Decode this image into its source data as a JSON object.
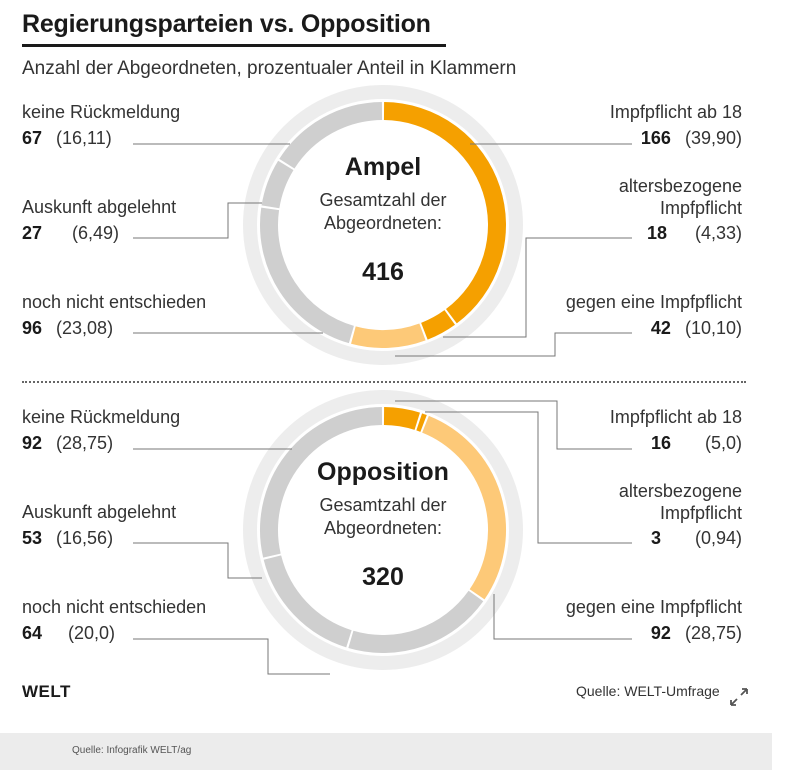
{
  "header": {
    "title": "Regierungsparteien vs. Opposition",
    "subtitle": "Anzahl der Abgeordneten, prozentualer Anteil in Klammern"
  },
  "colors": {
    "impfpflicht_ab_18": "#f5a000",
    "altersbezogen": "#f5a000",
    "gegen": "#fdc978",
    "undecided": "#cfcfcf",
    "outer_ring": "#ededed"
  },
  "chart_data": [
    {
      "type": "pie",
      "title": "Ampel",
      "center_label": "Gesamtzahl der Abgeordneten:",
      "total": "416",
      "slices": [
        {
          "label": "Impfpflicht ab 18",
          "value": 166,
          "pct": "39,90",
          "color": "#f5a000"
        },
        {
          "label": "altersbezogene Impfpflicht",
          "value": 18,
          "pct": "4,33",
          "color": "#f5a000"
        },
        {
          "label": "gegen eine Impfpflicht",
          "value": 42,
          "pct": "10,10",
          "color": "#fdc978"
        },
        {
          "label": "noch nicht entschieden",
          "value": 96,
          "pct": "23,08",
          "color": "#cfcfcf"
        },
        {
          "label": "Auskunft abgelehnt",
          "value": 27,
          "pct": "6,49",
          "color": "#cfcfcf"
        },
        {
          "label": "keine Rückmeldung",
          "value": 67,
          "pct": "16,11",
          "color": "#cfcfcf"
        }
      ]
    },
    {
      "type": "pie",
      "title": "Opposition",
      "center_label": "Gesamtzahl der Abgeordneten:",
      "total": "320",
      "slices": [
        {
          "label": "Impfpflicht ab 18",
          "value": 16,
          "pct": "5,0",
          "color": "#f5a000"
        },
        {
          "label": "altersbezogene Impfpflicht",
          "value": 3,
          "pct": "0,94",
          "color": "#f5a000"
        },
        {
          "label": "gegen eine Impfpflicht",
          "value": 92,
          "pct": "28,75",
          "color": "#fdc978"
        },
        {
          "label": "noch nicht entschieden",
          "value": 64,
          "pct": "20,0",
          "color": "#cfcfcf"
        },
        {
          "label": "Auskunft abgelehnt",
          "value": 53,
          "pct": "16,56",
          "color": "#cfcfcf"
        },
        {
          "label": "keine Rückmeldung",
          "value": 92,
          "pct": "28,75",
          "color": "#cfcfcf"
        }
      ]
    }
  ],
  "labels": {
    "top": {
      "keine_rueck": {
        "line1": "keine Rückmeldung",
        "num": "67",
        "pct": "(16,11)"
      },
      "auskunft": {
        "line1": "Auskunft abgelehnt",
        "num": "27",
        "pct": "(6,49)"
      },
      "noch_nicht": {
        "line1": "noch nicht entschieden",
        "num": "96",
        "pct": "(23,08)"
      },
      "ab18": {
        "line1": "Impfpflicht ab 18",
        "num": "166",
        "pct": "(39,90)"
      },
      "alters": {
        "line1": "altersbezogene",
        "line2": "Impfpflicht",
        "num": "18",
        "pct": "(4,33)"
      },
      "gegen": {
        "line1": "gegen eine Impfpflicht",
        "num": "42",
        "pct": "(10,10)"
      }
    },
    "bottom": {
      "keine_rueck": {
        "line1": "keine Rückmeldung",
        "num": "92",
        "pct": "(28,75)"
      },
      "auskunft": {
        "line1": "Auskunft abgelehnt",
        "num": "53",
        "pct": "(16,56)"
      },
      "noch_nicht": {
        "line1": "noch nicht entschieden",
        "num": "64",
        "pct": "(20,0)"
      },
      "ab18": {
        "line1": "Impfpflicht ab 18",
        "num": "16",
        "pct": "(5,0)"
      },
      "alters": {
        "line1": "altersbezogene",
        "line2": "Impfpflicht",
        "num": "3",
        "pct": "(0,94)"
      },
      "gegen": {
        "line1": "gegen eine Impfpflicht",
        "num": "92",
        "pct": "(28,75)"
      }
    }
  },
  "branding": {
    "logo": "WELT",
    "source": "Quelle: WELT-Umfrage"
  },
  "footer": {
    "credit": "Quelle: Infografik WELT/ag"
  },
  "icons": {
    "expand": "expand-arrows-icon"
  }
}
